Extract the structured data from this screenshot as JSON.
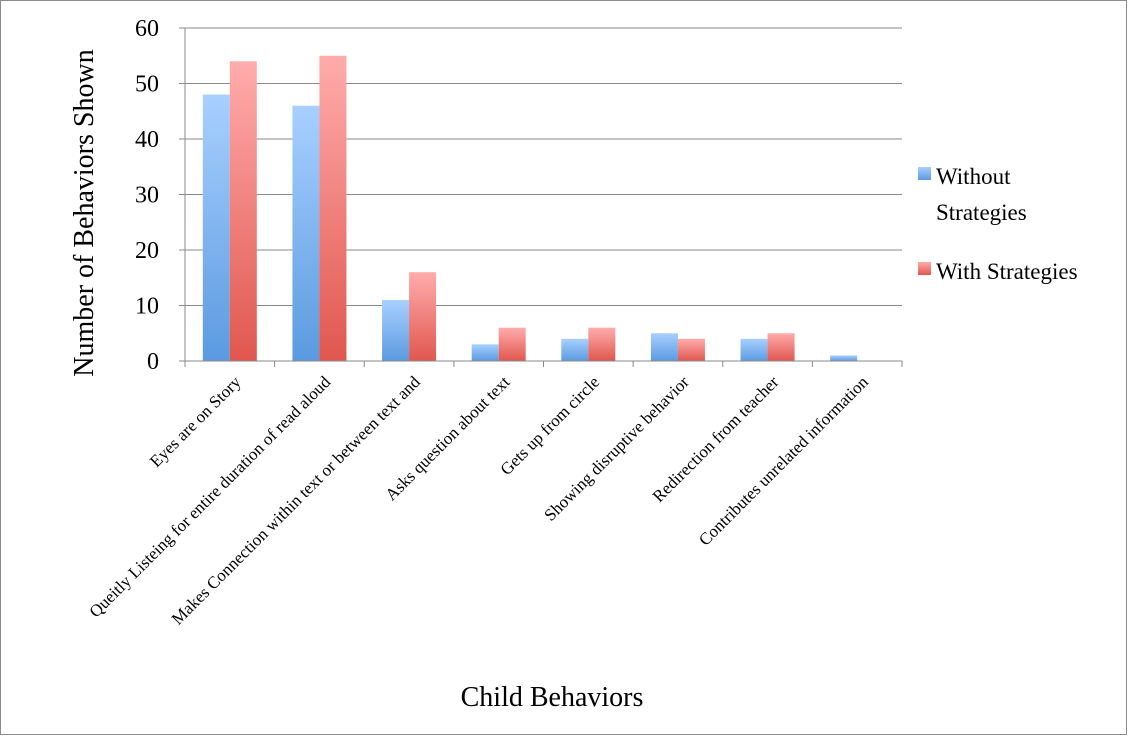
{
  "chart_data": {
    "type": "bar",
    "title": "",
    "xlabel": "Child Behaviors",
    "ylabel": "Number of Behaviors Shown",
    "ylim": [
      0,
      60
    ],
    "yticks": [
      "0",
      "10",
      "20",
      "30",
      "40",
      "50",
      "60"
    ],
    "grid": true,
    "legend_position": "right",
    "categories": [
      "Eyes are on Story",
      "Queitly Listeing for entire duration of read aloud",
      "Makes Connection within text or between text and",
      "Asks question about text",
      "Gets up from circle",
      "Showing disruptive behavior",
      "Redirection from teacher",
      "Contributes unrelated information"
    ],
    "series": [
      {
        "name": "Without Strategies",
        "legend_lines": [
          "Without",
          "Strategies"
        ],
        "color_top": "#a8d0ff",
        "color_bottom": "#5b9ae0",
        "values": [
          48,
          46,
          11,
          3,
          4,
          5,
          4,
          1
        ]
      },
      {
        "name": "With Strategies",
        "legend_lines": [
          "With Strategies"
        ],
        "color_top": "#ffacac",
        "color_bottom": "#e0574f",
        "values": [
          54,
          55,
          16,
          6,
          6,
          4,
          5,
          0
        ]
      }
    ]
  }
}
